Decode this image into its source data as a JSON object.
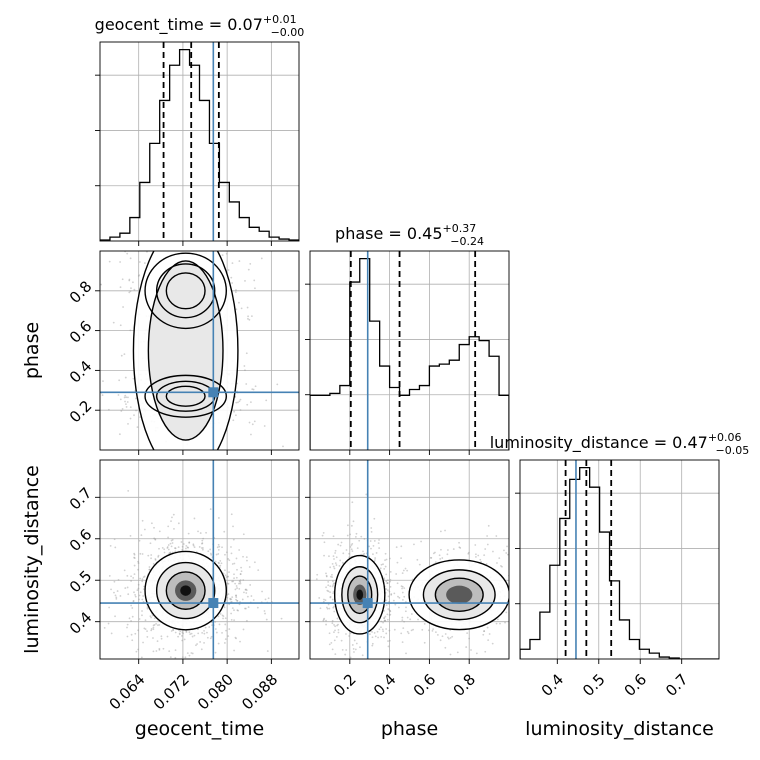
{
  "chart_data": {
    "type": "corner",
    "parameters": [
      "geocent_time",
      "phase",
      "luminosity_distance"
    ],
    "truth": {
      "geocent_time": 0.0775,
      "phase": 0.29,
      "luminosity_distance": 0.445
    },
    "colors": {
      "truth": "#4682b4",
      "hist": "#000000",
      "grid": "#b0b0b0",
      "quantile": "#000000"
    },
    "diagonal": [
      {
        "parameter": "geocent_time",
        "title_main": "geocent_time = 0.07",
        "title_plus": "+0.01",
        "title_minus": "−0.00",
        "range": [
          0.057,
          0.093
        ],
        "quantiles": [
          0.0685,
          0.0735,
          0.0785
        ],
        "bins": [
          0.057,
          0.0588,
          0.0606,
          0.0624,
          0.0642,
          0.066,
          0.0678,
          0.0696,
          0.0714,
          0.0732,
          0.075,
          0.0768,
          0.0786,
          0.0804,
          0.0822,
          0.084,
          0.0858,
          0.0876,
          0.0894,
          0.0912,
          0.093
        ],
        "counts": [
          0.005,
          0.02,
          0.04,
          0.12,
          0.3,
          0.5,
          0.72,
          0.9,
          0.98,
          0.9,
          0.72,
          0.5,
          0.3,
          0.2,
          0.12,
          0.07,
          0.05,
          0.02,
          0.01,
          0.005
        ]
      },
      {
        "parameter": "phase",
        "title_main": "phase = 0.45",
        "title_plus": "+0.37",
        "title_minus": "−0.24",
        "range": [
          0.0,
          1.0
        ],
        "quantiles": [
          0.205,
          0.45,
          0.83
        ],
        "bins": [
          0.0,
          0.05,
          0.1,
          0.15,
          0.2,
          0.25,
          0.3,
          0.35,
          0.4,
          0.45,
          0.5,
          0.55,
          0.6,
          0.65,
          0.7,
          0.75,
          0.8,
          0.85,
          0.9,
          0.95,
          1.0
        ],
        "counts": [
          0.28,
          0.28,
          0.29,
          0.33,
          0.86,
          0.98,
          0.66,
          0.43,
          0.32,
          0.28,
          0.31,
          0.33,
          0.43,
          0.44,
          0.46,
          0.54,
          0.58,
          0.56,
          0.48,
          0.28
        ]
      },
      {
        "parameter": "luminosity_distance",
        "title_main": "luminosity_distance = 0.47",
        "title_plus": "+0.06",
        "title_minus": "−0.05",
        "range": [
          0.31,
          0.79
        ],
        "quantiles": [
          0.42,
          0.47,
          0.53
        ],
        "bins": [
          0.31,
          0.334,
          0.358,
          0.382,
          0.406,
          0.43,
          0.454,
          0.478,
          0.502,
          0.526,
          0.55,
          0.574,
          0.598,
          0.622,
          0.646,
          0.67,
          0.694,
          0.718,
          0.742,
          0.766,
          0.79
        ],
        "counts": [
          0.05,
          0.1,
          0.24,
          0.48,
          0.72,
          0.92,
          0.98,
          0.88,
          0.65,
          0.4,
          0.2,
          0.1,
          0.05,
          0.03,
          0.01,
          0.005,
          0.0,
          0.0,
          0.0,
          0.0
        ]
      }
    ],
    "offdiagonal": [
      {
        "x_param": "geocent_time",
        "y_param": "phase",
        "modes": [
          {
            "cx": 0.0725,
            "cy": 0.27,
            "sx": 0.0035,
            "sy": 0.05,
            "weight": 1.0
          },
          {
            "cx": 0.0725,
            "cy": 0.8,
            "sx": 0.0035,
            "sy": 0.09,
            "weight": 0.55
          },
          {
            "cx": 0.0725,
            "cy": 0.5,
            "sx": 0.0045,
            "sy": 0.3,
            "weight": 0.18
          }
        ]
      },
      {
        "x_param": "geocent_time",
        "y_param": "luminosity_distance",
        "modes": [
          {
            "cx": 0.0725,
            "cy": 0.475,
            "sx": 0.0035,
            "sy": 0.045,
            "weight": 1.0
          }
        ]
      },
      {
        "x_param": "phase",
        "y_param": "luminosity_distance",
        "modes": [
          {
            "cx": 0.25,
            "cy": 0.465,
            "sx": 0.06,
            "sy": 0.045,
            "weight": 1.0
          },
          {
            "cx": 0.75,
            "cy": 0.465,
            "sx": 0.12,
            "sy": 0.04,
            "weight": 0.65
          }
        ]
      }
    ],
    "ticks": {
      "geocent_time": [
        {
          "v": 0.064,
          "label": "0.064"
        },
        {
          "v": 0.072,
          "label": "0.072"
        },
        {
          "v": 0.08,
          "label": "0.080"
        },
        {
          "v": 0.088,
          "label": "0.088"
        }
      ],
      "phase": [
        {
          "v": 0.2,
          "label": "0.2"
        },
        {
          "v": 0.4,
          "label": "0.4"
        },
        {
          "v": 0.6,
          "label": "0.6"
        },
        {
          "v": 0.8,
          "label": "0.8"
        }
      ],
      "luminosity_distance": [
        {
          "v": 0.4,
          "label": "0.4"
        },
        {
          "v": 0.5,
          "label": "0.5"
        },
        {
          "v": 0.6,
          "label": "0.6"
        },
        {
          "v": 0.7,
          "label": "0.7"
        }
      ]
    },
    "axis_labels": {
      "geocent_time": "geocent_time",
      "phase": "phase",
      "luminosity_distance": "luminosity_distance"
    }
  }
}
